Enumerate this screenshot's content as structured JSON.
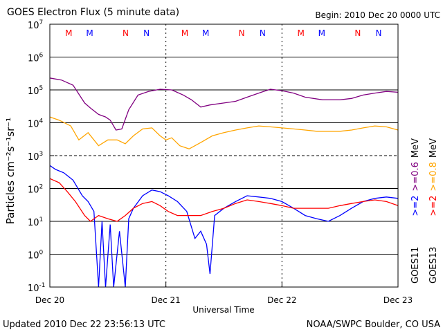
{
  "chart_data": {
    "type": "line",
    "title": "GOES Electron Flux (5 minute data)",
    "begin_label": "Begin: 2010 Dec 20 0000 UTC",
    "xlabel": "Universal Time",
    "ylabel": "Particles cm⁻²s⁻¹sr⁻¹",
    "x_range_days": [
      0,
      3
    ],
    "x_ticks": [
      {
        "day": 0,
        "label": "Dec 20"
      },
      {
        "day": 1,
        "label": "Dec 21"
      },
      {
        "day": 2,
        "label": "Dec 22"
      },
      {
        "day": 3,
        "label": "Dec 23"
      }
    ],
    "y_log_range": [
      -1,
      7
    ],
    "y_ticks": [
      {
        "exp": 7,
        "label": "10",
        "sup": "7"
      },
      {
        "exp": 6,
        "label": "10",
        "sup": "6"
      },
      {
        "exp": 5,
        "label": "10",
        "sup": "5"
      },
      {
        "exp": 4,
        "label": "10",
        "sup": "4"
      },
      {
        "exp": 3,
        "label": "10",
        "sup": "3"
      },
      {
        "exp": 2,
        "label": "10",
        "sup": "2"
      },
      {
        "exp": 1,
        "label": "10",
        "sup": "1"
      },
      {
        "exp": 0,
        "label": "10",
        "sup": "0"
      },
      {
        "exp": -1,
        "label": "10",
        "sup": "-1"
      }
    ],
    "markers": [
      {
        "day": 0.33,
        "label": "M",
        "color": "#ff0000"
      },
      {
        "day": 0.51,
        "label": "M",
        "color": "#0000ff"
      },
      {
        "day": 0.82,
        "label": "N",
        "color": "#ff0000"
      },
      {
        "day": 1.0,
        "label": "N",
        "color": "#0000ff"
      },
      {
        "day": 1.33,
        "label": "M",
        "color": "#ff0000"
      },
      {
        "day": 1.51,
        "label": "M",
        "color": "#0000ff"
      },
      {
        "day": 1.82,
        "label": "N",
        "color": "#ff0000"
      },
      {
        "day": 2.0,
        "label": "N",
        "color": "#0000ff"
      },
      {
        "day": 2.33,
        "label": "M",
        "color": "#ff0000"
      },
      {
        "day": 2.51,
        "label": "M",
        "color": "#0000ff"
      },
      {
        "day": 2.82,
        "label": "N",
        "color": "#ff0000"
      },
      {
        "day": 3.0,
        "label": "N",
        "color": "#0000ff"
      }
    ],
    "legend": {
      "col1": [
        {
          "text": "GOES11",
          "color": "#000000"
        },
        {
          "text": ">=2",
          "color": "#0000ff"
        },
        {
          "text": ">=0.6",
          "color": "#800080"
        },
        {
          "text": "MeV",
          "color": "#000000"
        }
      ],
      "col2": [
        {
          "text": "GOES13",
          "color": "#000000"
        },
        {
          "text": ">=2",
          "color": "#ff0000"
        },
        {
          "text": ">=0.8",
          "color": "#ffa500"
        },
        {
          "text": "MeV",
          "color": "#000000"
        }
      ]
    },
    "series": [
      {
        "name": "GOES11 >=0.6 MeV",
        "color": "#800080",
        "points": [
          [
            0,
            230000.0
          ],
          [
            0.1,
            200000.0
          ],
          [
            0.2,
            140000.0
          ],
          [
            0.3,
            40000.0
          ],
          [
            0.35,
            28000.0
          ],
          [
            0.42,
            18000.0
          ],
          [
            0.48,
            15000.0
          ],
          [
            0.52,
            12000.0
          ],
          [
            0.57,
            6000.0
          ],
          [
            0.62,
            6500.0
          ],
          [
            0.68,
            25000.0
          ],
          [
            0.76,
            70000.0
          ],
          [
            0.85,
            90000.0
          ],
          [
            0.95,
            105000.0
          ],
          [
            1.05,
            100000.0
          ],
          [
            1.15,
            70000.0
          ],
          [
            1.22,
            50000.0
          ],
          [
            1.3,
            30000.0
          ],
          [
            1.38,
            35000.0
          ],
          [
            1.5,
            40000.0
          ],
          [
            1.6,
            45000.0
          ],
          [
            1.7,
            60000.0
          ],
          [
            1.8,
            80000.0
          ],
          [
            1.9,
            105000.0
          ],
          [
            2.0,
            95000.0
          ],
          [
            2.1,
            80000.0
          ],
          [
            2.2,
            60000.0
          ],
          [
            2.35,
            50000.0
          ],
          [
            2.5,
            50000.0
          ],
          [
            2.6,
            55000.0
          ],
          [
            2.7,
            70000.0
          ],
          [
            2.8,
            80000.0
          ],
          [
            2.9,
            90000.0
          ],
          [
            3.0,
            85000.0
          ]
        ]
      },
      {
        "name": "GOES13 >=0.8 MeV",
        "color": "#ffa500",
        "points": [
          [
            0,
            15000.0
          ],
          [
            0.08,
            12000.0
          ],
          [
            0.18,
            8000.0
          ],
          [
            0.25,
            3000.0
          ],
          [
            0.33,
            5000.0
          ],
          [
            0.42,
            2000.0
          ],
          [
            0.5,
            3000.0
          ],
          [
            0.58,
            3000.0
          ],
          [
            0.65,
            2300.0
          ],
          [
            0.72,
            4000.0
          ],
          [
            0.8,
            6500.0
          ],
          [
            0.88,
            7000.0
          ],
          [
            0.95,
            4000.0
          ],
          [
            1.0,
            3000.0
          ],
          [
            1.05,
            3500.0
          ],
          [
            1.12,
            2000.0
          ],
          [
            1.2,
            1600.0
          ],
          [
            1.3,
            2500.0
          ],
          [
            1.4,
            4000.0
          ],
          [
            1.5,
            5000.0
          ],
          [
            1.6,
            6000.0
          ],
          [
            1.7,
            7000.0
          ],
          [
            1.8,
            8000.0
          ],
          [
            1.9,
            7500.0
          ],
          [
            2.0,
            7000.0
          ],
          [
            2.1,
            6500.0
          ],
          [
            2.2,
            6000.0
          ],
          [
            2.3,
            5500.0
          ],
          [
            2.4,
            5500.0
          ],
          [
            2.5,
            5500.0
          ],
          [
            2.6,
            6000.0
          ],
          [
            2.7,
            7000.0
          ],
          [
            2.8,
            8000.0
          ],
          [
            2.9,
            7500.0
          ],
          [
            3.0,
            6000.0
          ]
        ]
      },
      {
        "name": "GOES11 >=2 MeV",
        "color": "#0000ff",
        "points": [
          [
            0,
            500
          ],
          [
            0.05,
            380
          ],
          [
            0.12,
            300
          ],
          [
            0.2,
            180
          ],
          [
            0.28,
            60
          ],
          [
            0.33,
            40
          ],
          [
            0.38,
            20
          ],
          [
            0.42,
            0.1
          ],
          [
            0.45,
            10
          ],
          [
            0.48,
            0.1
          ],
          [
            0.52,
            8
          ],
          [
            0.55,
            0.1
          ],
          [
            0.6,
            5
          ],
          [
            0.65,
            0.1
          ],
          [
            0.68,
            12
          ],
          [
            0.72,
            25
          ],
          [
            0.8,
            60
          ],
          [
            0.88,
            90
          ],
          [
            0.95,
            80
          ],
          [
            1.02,
            60
          ],
          [
            1.1,
            40
          ],
          [
            1.18,
            20
          ],
          [
            1.25,
            3
          ],
          [
            1.3,
            5
          ],
          [
            1.35,
            2
          ],
          [
            1.38,
            0.25
          ],
          [
            1.42,
            15
          ],
          [
            1.5,
            25
          ],
          [
            1.6,
            40
          ],
          [
            1.7,
            60
          ],
          [
            1.8,
            55
          ],
          [
            1.9,
            50
          ],
          [
            2.0,
            40
          ],
          [
            2.1,
            25
          ],
          [
            2.2,
            15
          ],
          [
            2.3,
            12
          ],
          [
            2.4,
            10
          ],
          [
            2.5,
            15
          ],
          [
            2.6,
            25
          ],
          [
            2.7,
            40
          ],
          [
            2.8,
            50
          ],
          [
            2.9,
            55
          ],
          [
            3.0,
            50
          ]
        ]
      },
      {
        "name": "GOES13 >=2 MeV",
        "color": "#ff0000",
        "points": [
          [
            0,
            200
          ],
          [
            0.08,
            150
          ],
          [
            0.15,
            80
          ],
          [
            0.22,
            40
          ],
          [
            0.3,
            15
          ],
          [
            0.35,
            10
          ],
          [
            0.42,
            15
          ],
          [
            0.5,
            12
          ],
          [
            0.58,
            10
          ],
          [
            0.65,
            15
          ],
          [
            0.72,
            25
          ],
          [
            0.8,
            35
          ],
          [
            0.88,
            40
          ],
          [
            0.95,
            30
          ],
          [
            1.02,
            20
          ],
          [
            1.1,
            15
          ],
          [
            1.2,
            15
          ],
          [
            1.3,
            15
          ],
          [
            1.4,
            20
          ],
          [
            1.5,
            25
          ],
          [
            1.6,
            35
          ],
          [
            1.7,
            45
          ],
          [
            1.8,
            40
          ],
          [
            1.9,
            35
          ],
          [
            2.0,
            30
          ],
          [
            2.1,
            25
          ],
          [
            2.2,
            25
          ],
          [
            2.3,
            25
          ],
          [
            2.4,
            25
          ],
          [
            2.5,
            30
          ],
          [
            2.6,
            35
          ],
          [
            2.7,
            40
          ],
          [
            2.8,
            45
          ],
          [
            2.9,
            40
          ],
          [
            3.0,
            30
          ]
        ]
      }
    ]
  },
  "footer": {
    "updated": "Updated 2010 Dec 22 23:56:13 UTC",
    "credit": "NOAA/SWPC Boulder, CO USA"
  }
}
